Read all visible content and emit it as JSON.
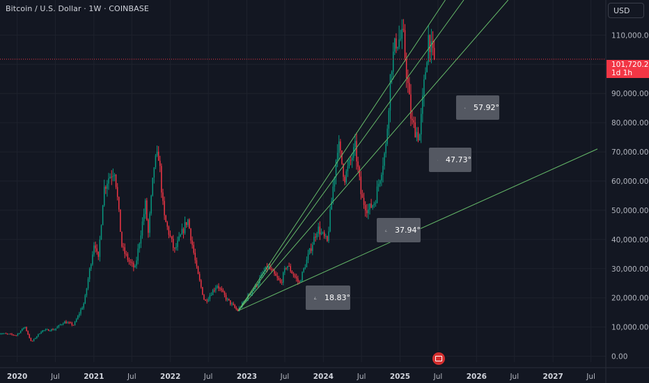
{
  "header": {
    "symbol_title": "Bitcoin / U.S. Dollar · 1W · COINBASE",
    "currency_button": "USD"
  },
  "price_tag": {
    "price": "101,720.20",
    "countdown": "1d 1h"
  },
  "angle_labels": [
    "57.92°",
    "47.73°",
    "37.94°",
    "18.83°"
  ],
  "colors": {
    "background": "#131722",
    "up_candle": "#089981",
    "down_candle": "#f23645",
    "trendline": "#66bb6a",
    "price_line": "#f23645",
    "axis_text": "#b2b5be"
  },
  "chart_data": {
    "type": "candlestick",
    "title": "Bitcoin / U.S. Dollar · 1W · COINBASE",
    "y_axis": {
      "side": "right",
      "range": [
        -2000,
        122000
      ],
      "ticks": [
        "110,000.00",
        "100,000.00",
        "90,000.00",
        "80,000.00",
        "70,000.00",
        "60,000.00",
        "50,000.00",
        "40,000.00",
        "30,000.00",
        "20,000.00",
        "10,000.00",
        "0.00"
      ],
      "tick_values": [
        110000,
        100000,
        90000,
        80000,
        70000,
        60000,
        50000,
        40000,
        30000,
        20000,
        10000,
        0
      ]
    },
    "x_axis": {
      "ticks": [
        "2020",
        "Jul",
        "2021",
        "Jul",
        "2022",
        "Jul",
        "2023",
        "Jul",
        "2024",
        "Jul",
        "2025",
        "Jul",
        "2026",
        "Jul",
        "2027",
        "Jul"
      ],
      "tick_dates": [
        "2020-01-01",
        "2020-07-01",
        "2021-01-01",
        "2021-07-01",
        "2022-01-01",
        "2022-07-01",
        "2023-01-01",
        "2023-07-01",
        "2024-01-01",
        "2024-07-01",
        "2025-01-01",
        "2025-07-01",
        "2026-01-01",
        "2026-07-01",
        "2027-01-01",
        "2027-07-01"
      ]
    },
    "price_path": [
      [
        "2019-10-01",
        8000
      ],
      [
        "2020-01-01",
        7200
      ],
      [
        "2020-02-10",
        10200
      ],
      [
        "2020-03-12",
        4800
      ],
      [
        "2020-05-01",
        8800
      ],
      [
        "2020-07-01",
        9200
      ],
      [
        "2020-08-15",
        11800
      ],
      [
        "2020-10-01",
        10700
      ],
      [
        "2020-11-20",
        18500
      ],
      [
        "2021-01-08",
        40000
      ],
      [
        "2021-01-25",
        32000
      ],
      [
        "2021-02-20",
        57000
      ],
      [
        "2021-03-13",
        61000
      ],
      [
        "2021-04-14",
        64000
      ],
      [
        "2021-05-19",
        37000
      ],
      [
        "2021-06-25",
        32000
      ],
      [
        "2021-07-20",
        30000
      ],
      [
        "2021-09-07",
        52000
      ],
      [
        "2021-09-21",
        42000
      ],
      [
        "2021-10-20",
        66000
      ],
      [
        "2021-11-10",
        69000
      ],
      [
        "2021-12-04",
        48000
      ],
      [
        "2022-01-24",
        36000
      ],
      [
        "2022-03-28",
        47000
      ],
      [
        "2022-05-12",
        29000
      ],
      [
        "2022-06-18",
        18500
      ],
      [
        "2022-08-15",
        24500
      ],
      [
        "2022-10-01",
        19500
      ],
      [
        "2022-11-21",
        15600
      ],
      [
        "2023-01-15",
        21000
      ],
      [
        "2023-02-20",
        24500
      ],
      [
        "2023-03-20",
        28000
      ],
      [
        "2023-04-14",
        30800
      ],
      [
        "2023-06-15",
        25000
      ],
      [
        "2023-07-14",
        31500
      ],
      [
        "2023-09-11",
        25000
      ],
      [
        "2023-10-25",
        34500
      ],
      [
        "2023-12-08",
        44000
      ],
      [
        "2024-01-23",
        39000
      ],
      [
        "2024-03-14",
        73500
      ],
      [
        "2024-04-15",
        61000
      ],
      [
        "2024-06-05",
        71500
      ],
      [
        "2024-07-05",
        54000
      ],
      [
        "2024-08-05",
        50000
      ],
      [
        "2024-09-06",
        53000
      ],
      [
        "2024-10-30",
        72000
      ],
      [
        "2024-11-22",
        99000
      ],
      [
        "2024-12-17",
        108000
      ],
      [
        "2025-01-20",
        109000
      ],
      [
        "2025-02-28",
        80000
      ],
      [
        "2025-04-07",
        75000
      ],
      [
        "2025-05-22",
        111000
      ],
      [
        "2025-06-01",
        105000
      ],
      [
        "2025-06-12",
        101720
      ]
    ],
    "last_price": 101720.2,
    "trendlines": [
      {
        "from": [
          "2022-11-21",
          15600
        ],
        "to": [
          "2027-08-01",
          71000
        ],
        "angle_label": "18.83°"
      },
      {
        "from": [
          "2022-11-21",
          15600
        ],
        "to": [
          "2026-06-01",
          122000
        ],
        "angle_label": "37.94°"
      },
      {
        "from": [
          "2022-11-21",
          15600
        ],
        "to": [
          "2025-11-01",
          122000
        ],
        "angle_label": "47.73°"
      },
      {
        "from": [
          "2022-11-21",
          15600
        ],
        "to": [
          "2025-08-05",
          122000
        ],
        "angle_label": "57.92°"
      }
    ]
  }
}
